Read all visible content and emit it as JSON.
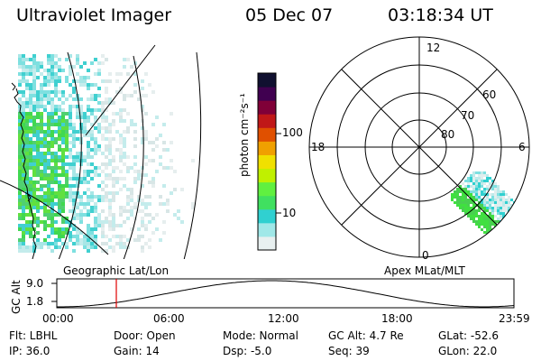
{
  "header": {
    "instrument": "Ultraviolet Imager",
    "date": "05 Dec 07",
    "time": "03:18:34 UT"
  },
  "colorbar": {
    "label": "photon cm⁻²s⁻¹",
    "ticks": [
      "100",
      "10"
    ],
    "scale": "log",
    "colors": [
      "#e8f0f0",
      "#a0e8e8",
      "#30d0d0",
      "#40e060",
      "#60f040",
      "#c0f000",
      "#f0e000",
      "#f0a000",
      "#e05000",
      "#c01818",
      "#800038",
      "#400050",
      "#101030"
    ]
  },
  "left_panel": {
    "caption": "Geographic Lat/Lon"
  },
  "right_panel": {
    "caption": "Apex MLat/MLT",
    "mlt_labels": {
      "top": "12",
      "left": "18",
      "right": "6",
      "bottom": "0"
    },
    "lat_labels": [
      "60",
      "70",
      "80"
    ]
  },
  "altitude_plot": {
    "ylabel": "GC Alt",
    "yticks": [
      "9.0",
      "1.8"
    ],
    "xticks": [
      "00:00",
      "06:00",
      "12:00",
      "18:00",
      "23:59"
    ],
    "marker_color": "#e00000"
  },
  "info": {
    "flt": "Flt: LBHL",
    "ip": "IP: 36.0",
    "door": "Door: Open",
    "gain": "Gain: 14",
    "mode": "Mode: Normal",
    "dsp": "Dsp:    -5.0",
    "gcalt": "GC Alt: 4.7 Re",
    "seq": "Seq: 39",
    "glat": "GLat:  -52.6",
    "glon": "GLon:  22.0"
  }
}
